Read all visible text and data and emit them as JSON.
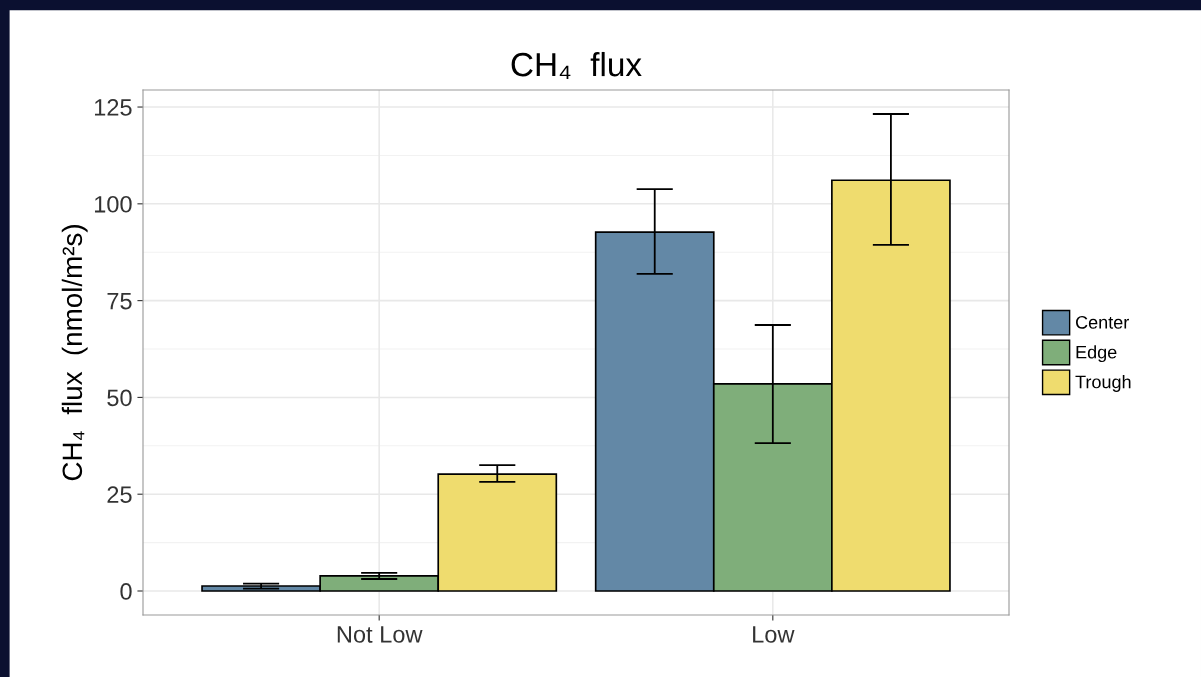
{
  "chart_data": {
    "type": "bar",
    "title": "CH₄  flux",
    "ylabel": "CH₄  flux  (nmol/m²s)",
    "categories": [
      "Not Low",
      "Low"
    ],
    "series": [
      {
        "name": "Center",
        "color": "#6388a6",
        "values": [
          1.3,
          92.7
        ],
        "errors": [
          [
            0.6,
            1.9
          ],
          [
            81.9,
            103.8
          ]
        ]
      },
      {
        "name": "Edge",
        "color": "#7fae7a",
        "values": [
          3.9,
          53.5
        ],
        "errors": [
          [
            3.1,
            4.7
          ],
          [
            38.2,
            68.7
          ]
        ]
      },
      {
        "name": "Trough",
        "color": "#efdc6e",
        "values": [
          30.2,
          106.1
        ],
        "errors": [
          [
            28.2,
            32.5
          ],
          [
            89.4,
            123.2
          ]
        ]
      }
    ],
    "ylim": [
      -6.2,
      129.4
    ],
    "yticks": [
      0,
      25,
      50,
      75,
      100,
      125
    ],
    "grid": true,
    "legend": "right"
  }
}
